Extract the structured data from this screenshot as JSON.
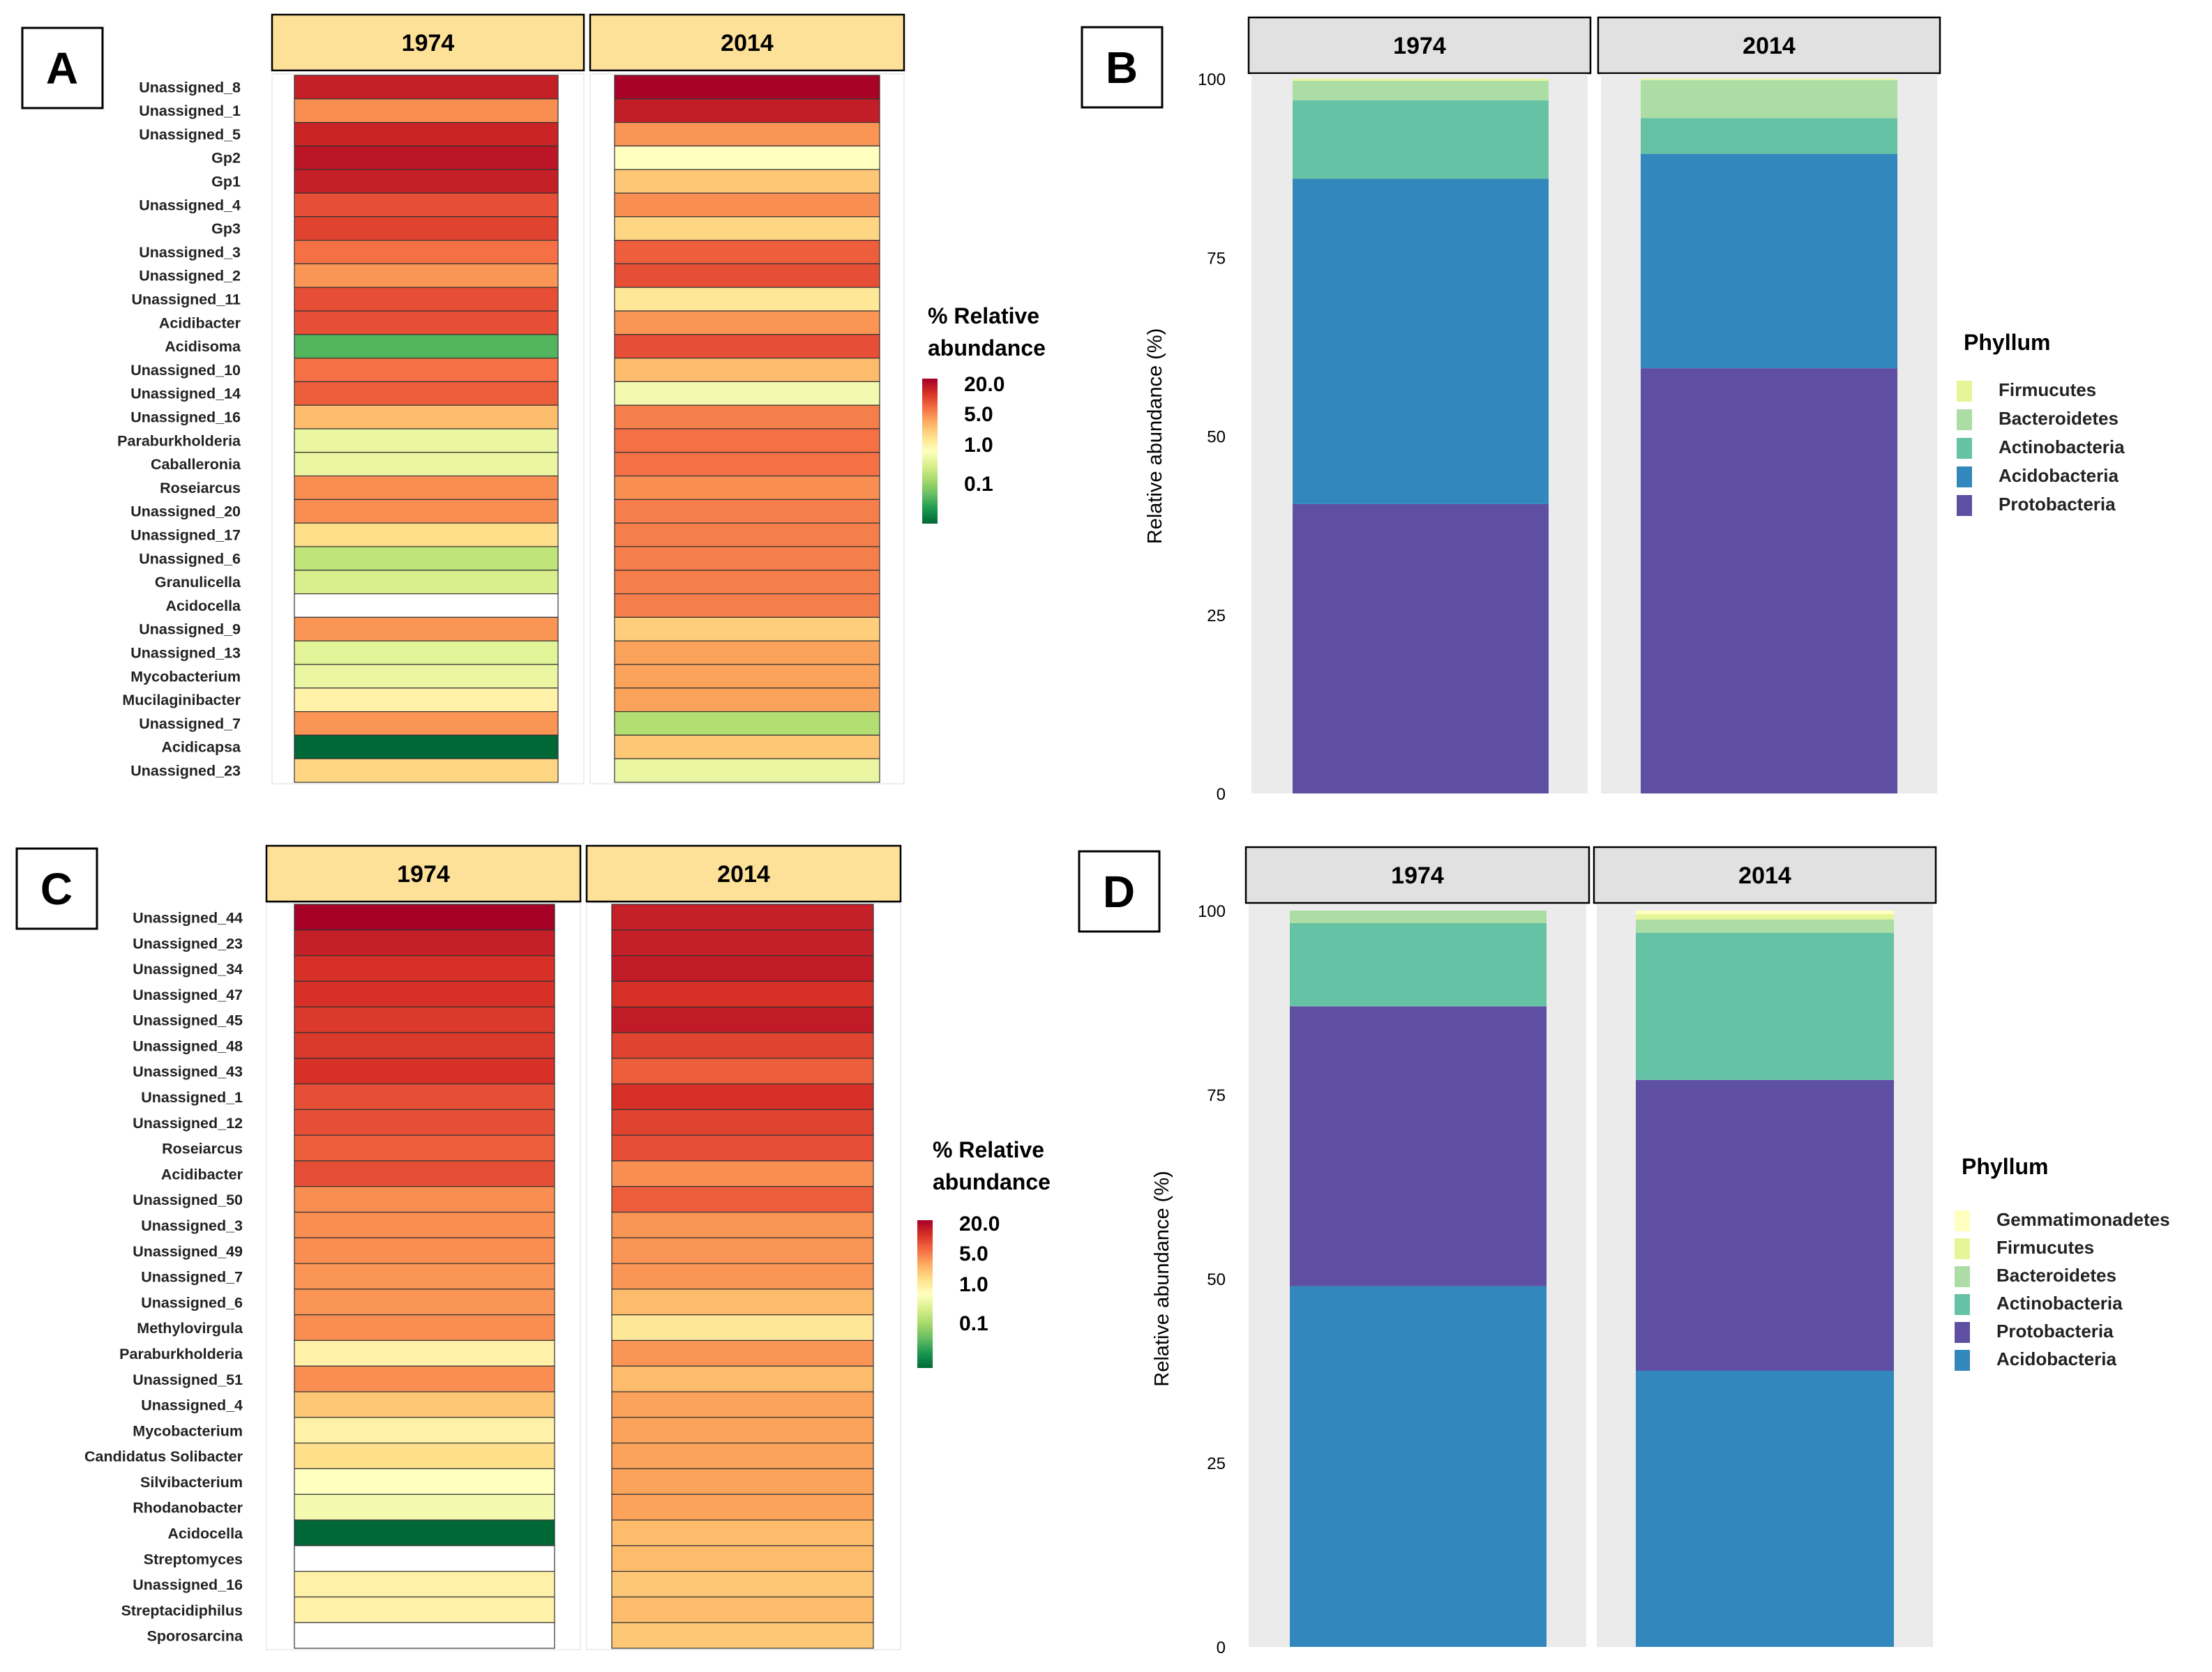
{
  "colors": {
    "heatmap_scale": [
      "#006837",
      "#1a9850",
      "#66bd63",
      "#a6d96a",
      "#d9ef8b",
      "#ffffbf",
      "#fee08b",
      "#fdae61",
      "#f46d43",
      "#d73027",
      "#a50026"
    ],
    "header_yellow": "#fde198",
    "header_gray": "#e1e1e1",
    "panel_bg": "#ebebeb",
    "Protobacteria": "#5e4fa2",
    "Acidobacteria": "#3288bd",
    "Actinobacteria": "#66c2a5",
    "Bacteroidetes": "#abdda4",
    "Firmucutes": "#e6f598",
    "Gemmatimonadetes": "#ffffbf"
  },
  "chart_data": [
    {
      "panel": "A",
      "type": "heatmap",
      "title": "",
      "columns": [
        "1974",
        "2014"
      ],
      "value_unit": "% Relative abundance",
      "rows": [
        "Unassigned_8",
        "Unassigned_1",
        "Unassigned_5",
        "Gp2",
        "Gp1",
        "Unassigned_4",
        "Gp3",
        "Unassigned_3",
        "Unassigned_2",
        "Unassigned_11",
        "Acidibacter",
        "Acidisoma",
        "Unassigned_10",
        "Unassigned_14",
        "Unassigned_16",
        "Paraburkholderia",
        "Caballeronia",
        "Roseiarcus",
        "Unassigned_20",
        "Unassigned_17",
        "Unassigned_6",
        "Granulicella",
        "Acidocella",
        "Unassigned_9",
        "Unassigned_13",
        "Mycobacterium",
        "Mucilaginibacter",
        "Unassigned_7",
        "Acidicapsa",
        "Unassigned_23"
      ],
      "values": [
        [
          11.0,
          19.0
        ],
        [
          2.0,
          11.5
        ],
        [
          10.0,
          1.8
        ],
        [
          13.0,
          0.2
        ],
        [
          11.0,
          0.8
        ],
        [
          5.0,
          2.0
        ],
        [
          6.0,
          0.6
        ],
        [
          3.0,
          4.0
        ],
        [
          1.8,
          5.0
        ],
        [
          5.0,
          0.4
        ],
        [
          5.0,
          1.8
        ],
        [
          0.01,
          5.0
        ],
        [
          3.0,
          1.0
        ],
        [
          4.0,
          0.15
        ],
        [
          1.0,
          2.5
        ],
        [
          0.12,
          3.0
        ],
        [
          0.12,
          3.0
        ],
        [
          2.0,
          2.0
        ],
        [
          2.0,
          2.5
        ],
        [
          0.5,
          2.5
        ],
        [
          0.05,
          2.5
        ],
        [
          0.08,
          2.5
        ],
        [
          null,
          2.5
        ],
        [
          1.8,
          0.7
        ],
        [
          0.1,
          1.5
        ],
        [
          0.12,
          1.5
        ],
        [
          0.3,
          1.5
        ],
        [
          1.8,
          0.04
        ],
        [
          0.002,
          0.8
        ],
        [
          0.6,
          0.12
        ]
      ],
      "legend": {
        "title": "% Relative\nabundance",
        "ticks": [
          "20.0",
          "5.0",
          "1.0",
          "0.1"
        ]
      }
    },
    {
      "panel": "B",
      "type": "bar",
      "stacked": true,
      "categories": [
        "1974",
        "2014"
      ],
      "ylabel": "Relative abundance (%)",
      "ylim": [
        0,
        100
      ],
      "yticks": [
        "100",
        "75",
        "50",
        "25",
        "0"
      ],
      "legend_title": "Phyllum",
      "legend": [
        "Firmucutes",
        "Bacteroidetes",
        "Actinobacteria",
        "Acidobacteria",
        "Protobacteria"
      ],
      "series": [
        {
          "name": "Protobacteria",
          "values": [
            40.5,
            59.5
          ]
        },
        {
          "name": "Acidobacteria",
          "values": [
            45.5,
            30.0
          ]
        },
        {
          "name": "Actinobacteria",
          "values": [
            11.0,
            5.0
          ]
        },
        {
          "name": "Bacteroidetes",
          "values": [
            2.7,
            5.3
          ]
        },
        {
          "name": "Firmucutes",
          "values": [
            0.3,
            0.2
          ]
        }
      ]
    },
    {
      "panel": "C",
      "type": "heatmap",
      "title": "",
      "columns": [
        "1974",
        "2014"
      ],
      "value_unit": "% Relative abundance",
      "rows": [
        "Unassigned_44",
        "Unassigned_23",
        "Unassigned_34",
        "Unassigned_47",
        "Unassigned_45",
        "Unassigned_48",
        "Unassigned_43",
        "Unassigned_1",
        "Unassigned_12",
        "Roseiarcus",
        "Acidibacter",
        "Unassigned_50",
        "Unassigned_3",
        "Unassigned_49",
        "Unassigned_7",
        "Unassigned_6",
        "Methylovirgula",
        "Paraburkholderia",
        "Unassigned_51",
        "Unassigned_4",
        "Mycobacterium",
        "Candidatus Solibacter",
        "Silvibacterium",
        "Rhodanobacter",
        "Acidocella",
        "Streptomyces",
        "Unassigned_16",
        "Streptacidiphilus",
        "Sporosarcina"
      ],
      "values": [
        [
          20.0,
          11.0
        ],
        [
          11.0,
          11.0
        ],
        [
          8.0,
          12.0
        ],
        [
          8.0,
          8.0
        ],
        [
          7.0,
          12.0
        ],
        [
          7.0,
          6.0
        ],
        [
          8.0,
          4.0
        ],
        [
          5.0,
          8.0
        ],
        [
          5.0,
          6.0
        ],
        [
          4.0,
          5.0
        ],
        [
          5.0,
          2.0
        ],
        [
          2.0,
          4.0
        ],
        [
          2.0,
          1.8
        ],
        [
          2.0,
          1.8
        ],
        [
          1.8,
          1.8
        ],
        [
          1.8,
          1.0
        ],
        [
          2.0,
          0.4
        ],
        [
          0.3,
          1.8
        ],
        [
          2.0,
          1.0
        ],
        [
          0.8,
          1.5
        ],
        [
          0.3,
          1.5
        ],
        [
          0.5,
          1.5
        ],
        [
          0.2,
          1.5
        ],
        [
          0.15,
          1.5
        ],
        [
          0.002,
          1.0
        ],
        [
          null,
          1.0
        ],
        [
          0.3,
          0.8
        ],
        [
          0.3,
          1.0
        ],
        [
          null,
          0.8
        ]
      ],
      "legend": {
        "title": "% Relative\nabundance",
        "ticks": [
          "20.0",
          "5.0",
          "1.0",
          "0.1"
        ]
      }
    },
    {
      "panel": "D",
      "type": "bar",
      "stacked": true,
      "categories": [
        "1974",
        "2014"
      ],
      "ylabel": "Relative abundance (%)",
      "ylim": [
        0,
        100
      ],
      "yticks": [
        "100",
        "75",
        "50",
        "25",
        "0"
      ],
      "legend_title": "Phyllum",
      "legend": [
        "Gemmatimonadetes",
        "Firmucutes",
        "Bacteroidetes",
        "Actinobacteria",
        "Protobacteria",
        "Acidobacteria"
      ],
      "series": [
        {
          "name": "Acidobacteria",
          "values": [
            49.0,
            37.5
          ]
        },
        {
          "name": "Protobacteria",
          "values": [
            38.0,
            39.5
          ]
        },
        {
          "name": "Actinobacteria",
          "values": [
            11.3,
            20.0
          ]
        },
        {
          "name": "Bacteroidetes",
          "values": [
            1.7,
            1.8
          ]
        },
        {
          "name": "Firmucutes",
          "values": [
            0.0,
            0.7
          ]
        },
        {
          "name": "Gemmatimonadetes",
          "values": [
            0.0,
            0.5
          ]
        }
      ]
    }
  ]
}
